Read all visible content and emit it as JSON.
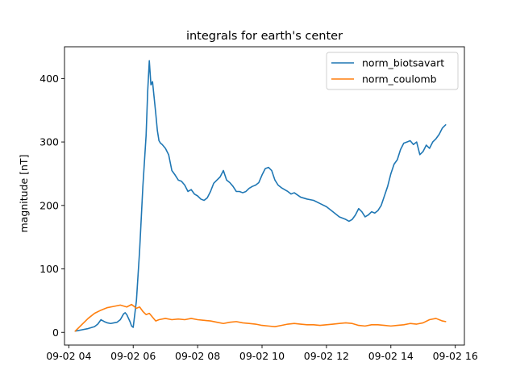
{
  "chart_data": {
    "type": "line",
    "title": "integrals for earth's center",
    "xlabel": "",
    "ylabel": "magnitude [nT]",
    "xlim": [
      "09-02 03:52",
      "09-02 16:17"
    ],
    "ylim": [
      -20,
      450
    ],
    "x_ticks": [
      "09-02 04",
      "09-02 06",
      "09-02 08",
      "09-02 10",
      "09-02 12",
      "09-02 14",
      "09-02 16"
    ],
    "x_tick_hours": [
      4,
      6,
      8,
      10,
      12,
      14,
      16
    ],
    "y_ticks": [
      0,
      100,
      200,
      300,
      400
    ],
    "grid": false,
    "legend": "top-right",
    "series": [
      {
        "name": "norm_biotsavart",
        "color": "#1f77b4",
        "x": [
          4.2,
          4.4,
          4.6,
          4.8,
          4.9,
          5.0,
          5.1,
          5.2,
          5.3,
          5.4,
          5.5,
          5.6,
          5.7,
          5.75,
          5.8,
          5.9,
          5.95,
          6.0,
          6.1,
          6.2,
          6.3,
          6.4,
          6.45,
          6.5,
          6.55,
          6.6,
          6.65,
          6.7,
          6.75,
          6.8,
          6.85,
          6.9,
          7.0,
          7.1,
          7.2,
          7.3,
          7.4,
          7.5,
          7.6,
          7.7,
          7.8,
          7.9,
          8.0,
          8.1,
          8.2,
          8.3,
          8.4,
          8.5,
          8.6,
          8.7,
          8.8,
          8.9,
          9.0,
          9.1,
          9.2,
          9.3,
          9.4,
          9.5,
          9.6,
          9.7,
          9.8,
          9.9,
          10.0,
          10.1,
          10.2,
          10.3,
          10.4,
          10.5,
          10.6,
          10.7,
          10.8,
          10.9,
          11.0,
          11.2,
          11.4,
          11.6,
          11.8,
          12.0,
          12.2,
          12.4,
          12.6,
          12.7,
          12.8,
          12.9,
          13.0,
          13.1,
          13.2,
          13.3,
          13.4,
          13.5,
          13.6,
          13.7,
          13.8,
          13.9,
          14.0,
          14.1,
          14.2,
          14.3,
          14.4,
          14.5,
          14.6,
          14.7,
          14.8,
          14.9,
          15.0,
          15.1,
          15.2,
          15.3,
          15.4,
          15.5,
          15.6,
          15.7
        ],
        "y": [
          2,
          4,
          6,
          9,
          13,
          20,
          17,
          15,
          14,
          15,
          16,
          20,
          29,
          31,
          28,
          17,
          10,
          8,
          50,
          130,
          230,
          310,
          380,
          428,
          390,
          395,
          370,
          345,
          318,
          302,
          298,
          296,
          290,
          280,
          255,
          248,
          240,
          238,
          232,
          222,
          225,
          218,
          215,
          210,
          208,
          212,
          222,
          235,
          240,
          245,
          255,
          240,
          236,
          230,
          222,
          222,
          220,
          222,
          227,
          230,
          232,
          236,
          248,
          258,
          260,
          255,
          240,
          232,
          228,
          225,
          222,
          218,
          220,
          213,
          210,
          208,
          203,
          198,
          190,
          182,
          178,
          175,
          178,
          185,
          195,
          190,
          182,
          185,
          190,
          188,
          192,
          200,
          215,
          230,
          250,
          265,
          272,
          288,
          298,
          300,
          302,
          296,
          300,
          280,
          285,
          295,
          290,
          300,
          305,
          312,
          322,
          327
        ]
      },
      {
        "name": "norm_coulomb",
        "color": "#ff7f0e",
        "x": [
          4.2,
          4.4,
          4.6,
          4.8,
          5.0,
          5.2,
          5.4,
          5.6,
          5.8,
          5.95,
          6.0,
          6.1,
          6.2,
          6.3,
          6.4,
          6.5,
          6.6,
          6.7,
          6.8,
          7.0,
          7.2,
          7.4,
          7.6,
          7.8,
          8.0,
          8.2,
          8.4,
          8.6,
          8.8,
          9.0,
          9.2,
          9.4,
          9.6,
          9.8,
          10.0,
          10.2,
          10.4,
          10.6,
          10.8,
          11.0,
          11.2,
          11.4,
          11.6,
          11.8,
          12.0,
          12.2,
          12.4,
          12.6,
          12.8,
          13.0,
          13.2,
          13.4,
          13.6,
          13.8,
          14.0,
          14.2,
          14.4,
          14.6,
          14.8,
          15.0,
          15.2,
          15.4,
          15.6,
          15.7
        ],
        "y": [
          2,
          12,
          22,
          30,
          35,
          39,
          41,
          43,
          40,
          44,
          42,
          38,
          40,
          33,
          28,
          30,
          24,
          18,
          20,
          22,
          20,
          21,
          20,
          22,
          20,
          19,
          18,
          16,
          14,
          16,
          17,
          15,
          14,
          13,
          11,
          10,
          9,
          11,
          13,
          14,
          13,
          12,
          12,
          11,
          12,
          13,
          14,
          15,
          14,
          11,
          10,
          12,
          12,
          11,
          10,
          11,
          12,
          14,
          13,
          15,
          20,
          22,
          18,
          17
        ]
      }
    ]
  }
}
